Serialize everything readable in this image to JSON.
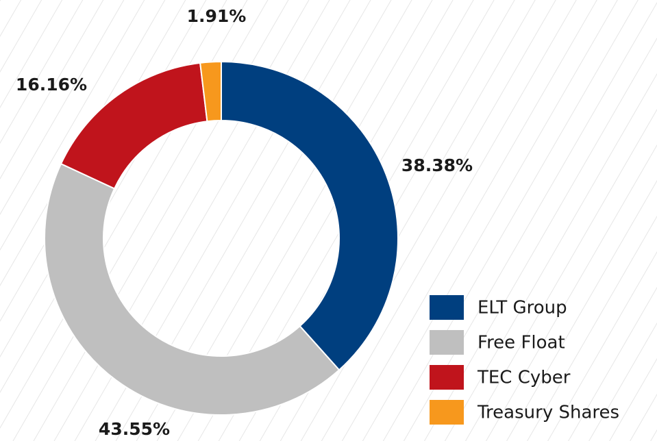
{
  "chart_data": {
    "type": "donut",
    "categories": [
      "ELT Group",
      "Free Float",
      "TEC Cyber",
      "Treasury Shares"
    ],
    "values": [
      38.38,
      43.55,
      16.16,
      1.91
    ],
    "value_labels": [
      "38.38%",
      "43.55%",
      "16.16%",
      "1.91%"
    ],
    "colors": [
      "#003f7f",
      "#bfbfbf",
      "#c0141c",
      "#f7981d"
    ],
    "legend": "bottom-right"
  }
}
